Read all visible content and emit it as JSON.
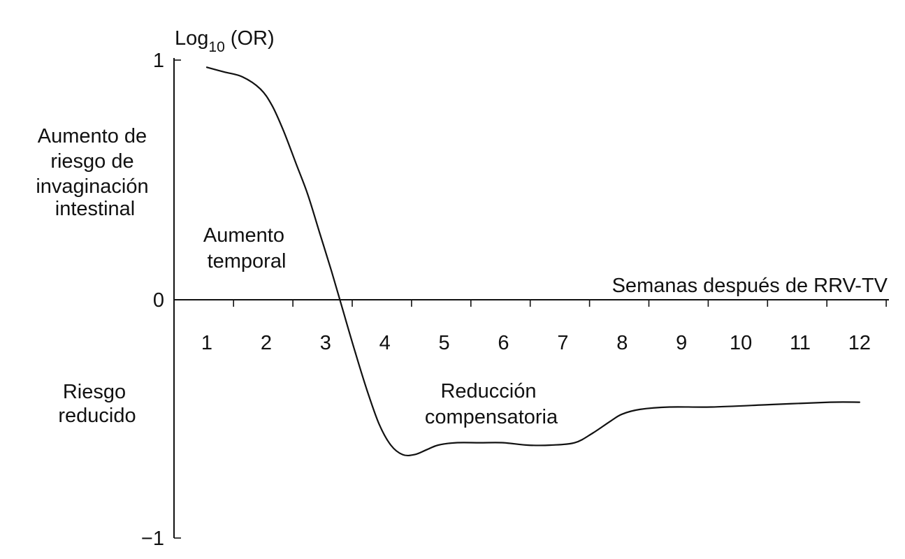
{
  "chart_data": {
    "type": "line",
    "ylabel": {
      "base": "Log",
      "subscript": "10",
      "rest": " (OR)"
    },
    "xlabel": "Semanas después de RRV-TV",
    "ylim": [
      -1,
      1
    ],
    "xlim": [
      0.5,
      12.5
    ],
    "y_ticks": [
      {
        "value": 1,
        "label": "1"
      },
      {
        "value": 0,
        "label": "0"
      },
      {
        "value": -1,
        "label": "−1"
      }
    ],
    "x_ticks": [
      {
        "value": 1,
        "label": "1"
      },
      {
        "value": 2,
        "label": "2"
      },
      {
        "value": 3,
        "label": "3"
      },
      {
        "value": 4,
        "label": "4"
      },
      {
        "value": 5,
        "label": "5"
      },
      {
        "value": 6,
        "label": "6"
      },
      {
        "value": 7,
        "label": "7"
      },
      {
        "value": 8,
        "label": "8"
      },
      {
        "value": 9,
        "label": "9"
      },
      {
        "value": 10,
        "label": "10"
      },
      {
        "value": 11,
        "label": "11"
      },
      {
        "value": 12,
        "label": "12"
      }
    ],
    "series": [
      {
        "x": [
          1.0,
          1.3,
          1.6,
          1.9,
          2.1,
          2.3,
          2.5,
          2.7,
          2.9,
          3.1,
          3.3,
          3.5,
          3.7,
          3.9,
          4.1,
          4.3,
          4.5,
          4.7,
          4.9,
          5.2,
          5.6,
          6.0,
          6.4,
          6.8,
          7.2,
          7.5,
          7.8,
          8.0,
          8.3,
          8.8,
          9.5,
          10.5,
          11.5,
          12.0
        ],
        "y": [
          0.97,
          0.95,
          0.93,
          0.88,
          0.81,
          0.7,
          0.57,
          0.44,
          0.28,
          0.12,
          -0.05,
          -0.22,
          -0.38,
          -0.52,
          -0.61,
          -0.65,
          -0.65,
          -0.63,
          -0.61,
          -0.6,
          -0.6,
          -0.6,
          -0.61,
          -0.61,
          -0.6,
          -0.56,
          -0.51,
          -0.48,
          -0.46,
          -0.45,
          -0.45,
          -0.44,
          -0.43,
          -0.43
        ]
      }
    ],
    "annotations": {
      "increase_risk": [
        "Aumento de",
        "riesgo de",
        "invaginación",
        "intestinal"
      ],
      "temporary_increase": [
        "Aumento",
        "temporal"
      ],
      "reduced_risk": [
        "Riesgo",
        "reducido"
      ],
      "compensatory_reduction": [
        "Reducción",
        "compensatoria"
      ]
    },
    "grid": false,
    "legend": "none"
  }
}
